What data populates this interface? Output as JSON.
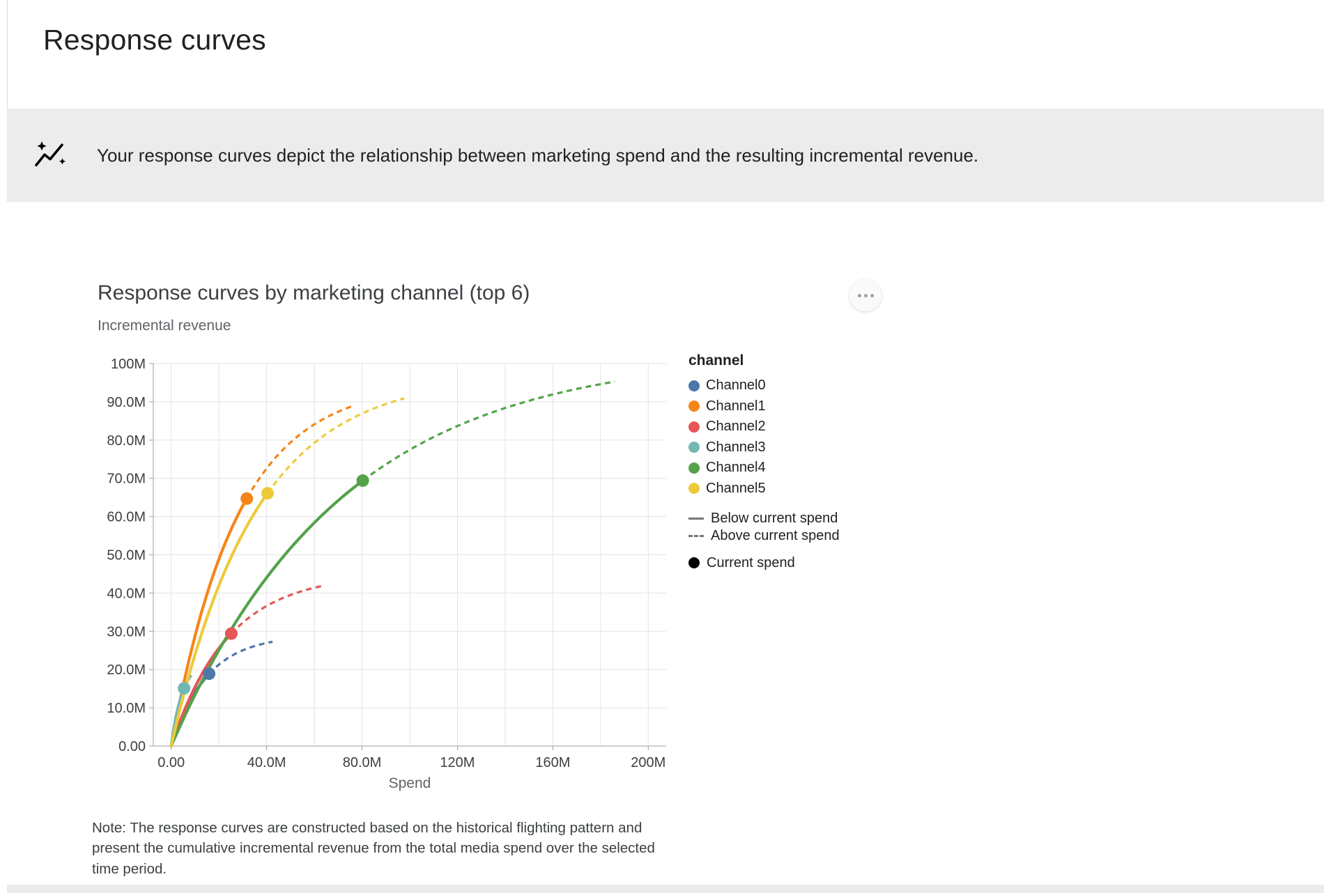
{
  "page": {
    "title": "Response curves"
  },
  "banner": {
    "icon": "insights-icon",
    "text": "Your response curves depict the relationship between marketing spend and the resulting incremental revenue."
  },
  "chart": {
    "title": "Response curves by marketing channel (top 6)",
    "y_axis_title": "Incremental revenue",
    "x_axis_title": "Spend",
    "more_options_icon": "more-options-icon",
    "note": "Note: The response curves are constructed based on the historical flighting pattern and present the cumulative incremental revenue from the total media spend over the selected time period."
  },
  "legend": {
    "header": "channel",
    "below_current_spend": "Below current spend",
    "above_current_spend": "Above current spend",
    "current_spend": "Current spend"
  },
  "chart_data": {
    "type": "line",
    "title": "Response curves by marketing channel (top 6)",
    "xlabel": "Spend",
    "ylabel": "Incremental revenue",
    "units": "millions",
    "grid": true,
    "legend_position": "right",
    "x_axis": {
      "domain_m": [
        -7.5,
        207.5
      ],
      "minor_grid_step_m": 20,
      "ticks": [
        {
          "value_m": 0,
          "label": "0.00"
        },
        {
          "value_m": 40,
          "label": "40.0M"
        },
        {
          "value_m": 80,
          "label": "80.0M"
        },
        {
          "value_m": 120,
          "label": "120M"
        },
        {
          "value_m": 160,
          "label": "160M"
        },
        {
          "value_m": 200,
          "label": "200M"
        }
      ]
    },
    "y_axis": {
      "domain_m": [
        0,
        100
      ],
      "ticks": [
        {
          "value_m": 0,
          "label": "0.00"
        },
        {
          "value_m": 10,
          "label": "10.0M"
        },
        {
          "value_m": 20,
          "label": "20.0M"
        },
        {
          "value_m": 30,
          "label": "30.0M"
        },
        {
          "value_m": 40,
          "label": "40.0M"
        },
        {
          "value_m": 50,
          "label": "50.0M"
        },
        {
          "value_m": 60,
          "label": "60.0M"
        },
        {
          "value_m": 70,
          "label": "70.0M"
        },
        {
          "value_m": 80,
          "label": "80.0M"
        },
        {
          "value_m": 90,
          "label": "90.0M"
        },
        {
          "value_m": 100,
          "label": "100M"
        }
      ]
    },
    "curve_model": "incremental_revenue_m = ymax_m * (1 - exp(-spend_m / scale_m))",
    "line_styles": {
      "below_current_spend": "solid",
      "above_current_spend": "dashed",
      "current_spend_marker": "filled-circle"
    },
    "series": [
      {
        "name": "Channel0",
        "color": "#4c78a8",
        "ymax_m": 29,
        "scale_m": 15.1,
        "current_spend": {
          "spend_m": 15.9,
          "revenue_m": 18.9
        },
        "max_spend_m": 42.5,
        "points_below": [
          [
            0,
            0
          ],
          [
            2.5,
            4.4
          ],
          [
            5,
            8.2
          ],
          [
            7.5,
            11.4
          ],
          [
            10,
            14.1
          ],
          [
            12.5,
            16.3
          ],
          [
            15.9,
            18.9
          ]
        ],
        "points_above": [
          [
            15.9,
            18.9
          ],
          [
            20,
            21.3
          ],
          [
            25,
            23.5
          ],
          [
            30,
            25.0
          ],
          [
            35,
            26.2
          ],
          [
            42.5,
            27.3
          ]
        ]
      },
      {
        "name": "Channel1",
        "color": "#f58518",
        "ymax_m": 95,
        "scale_m": 27.7,
        "current_spend": {
          "spend_m": 31.7,
          "revenue_m": 64.7
        },
        "max_spend_m": 77,
        "points_below": [
          [
            0,
            0
          ],
          [
            5,
            15.7
          ],
          [
            10,
            28.8
          ],
          [
            15,
            39.7
          ],
          [
            20,
            48.9
          ],
          [
            25,
            56.5
          ],
          [
            31.7,
            64.7
          ]
        ],
        "points_above": [
          [
            31.7,
            64.7
          ],
          [
            40,
            72.6
          ],
          [
            50,
            79.4
          ],
          [
            60,
            84.1
          ],
          [
            70,
            87.4
          ],
          [
            77,
            89.1
          ]
        ]
      },
      {
        "name": "Channel2",
        "color": "#e45756",
        "ymax_m": 45,
        "scale_m": 23.8,
        "current_spend": {
          "spend_m": 25.2,
          "revenue_m": 29.4
        },
        "max_spend_m": 63,
        "points_below": [
          [
            0,
            0
          ],
          [
            5,
            8.5
          ],
          [
            10,
            15.4
          ],
          [
            15,
            21.0
          ],
          [
            20,
            25.6
          ],
          [
            25.2,
            29.4
          ]
        ],
        "points_above": [
          [
            25.2,
            29.4
          ],
          [
            32,
            33.3
          ],
          [
            40,
            36.6
          ],
          [
            48,
            39.0
          ],
          [
            56,
            40.7
          ],
          [
            63,
            41.8
          ]
        ]
      },
      {
        "name": "Channel3",
        "color": "#72b7b2",
        "ymax_m": 22,
        "scale_m": 4.7,
        "current_spend": {
          "spend_m": 5.4,
          "revenue_m": 15.1
        },
        "max_spend_m": 9,
        "points_below": [
          [
            0,
            0
          ],
          [
            1,
            4.2
          ],
          [
            2,
            7.7
          ],
          [
            3,
            10.4
          ],
          [
            4,
            12.7
          ],
          [
            5.4,
            15.1
          ]
        ],
        "points_above": [
          [
            5.4,
            15.1
          ],
          [
            7,
            17.1
          ],
          [
            9,
            18.8
          ]
        ]
      },
      {
        "name": "Channel4",
        "color": "#54a24b",
        "ymax_m": 103,
        "scale_m": 71.7,
        "current_spend": {
          "spend_m": 80.3,
          "revenue_m": 69.4
        },
        "max_spend_m": 186,
        "points_below": [
          [
            0,
            0
          ],
          [
            10,
            13.4
          ],
          [
            20,
            25.1
          ],
          [
            30,
            35.2
          ],
          [
            40,
            44.0
          ],
          [
            55,
            55.2
          ],
          [
            70,
            64.2
          ],
          [
            80.3,
            69.4
          ]
        ],
        "points_above": [
          [
            80.3,
            69.4
          ],
          [
            100,
            77.5
          ],
          [
            120,
            83.7
          ],
          [
            140,
            88.4
          ],
          [
            160,
            91.9
          ],
          [
            186,
            95.3
          ]
        ]
      },
      {
        "name": "Channel5",
        "color": "#eeca3b",
        "ymax_m": 97,
        "scale_m": 35.3,
        "current_spend": {
          "spend_m": 40.4,
          "revenue_m": 66.1
        },
        "max_spend_m": 97.7,
        "points_below": [
          [
            0,
            0
          ],
          [
            5,
            12.8
          ],
          [
            10,
            23.9
          ],
          [
            15,
            33.6
          ],
          [
            20,
            41.9
          ],
          [
            28,
            53.1
          ],
          [
            34,
            60.0
          ],
          [
            40.4,
            66.1
          ]
        ],
        "points_above": [
          [
            40.4,
            66.1
          ],
          [
            52,
            74.8
          ],
          [
            64,
            81.2
          ],
          [
            76,
            85.7
          ],
          [
            88,
            89.0
          ],
          [
            97.7,
            91.0
          ]
        ]
      }
    ]
  }
}
